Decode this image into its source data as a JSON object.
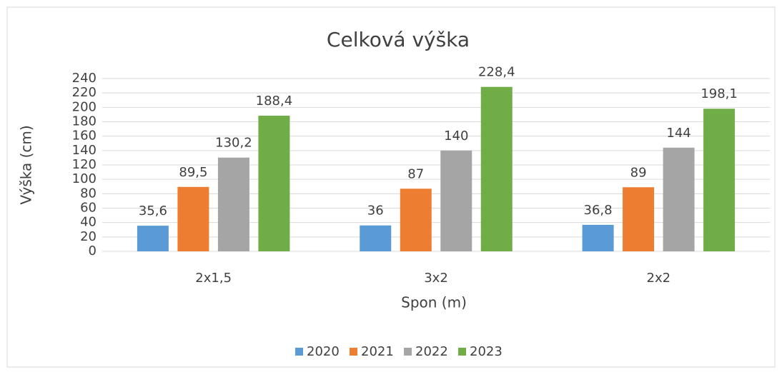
{
  "chart_data": {
    "type": "bar",
    "title": "Celková výška",
    "x_label": "Spon (m)",
    "y_label": "Výška (cm)",
    "categories": [
      "2x1,5",
      "3x2",
      "2x2"
    ],
    "series": [
      {
        "name": "2020",
        "color": "#5b9bd5",
        "values": [
          35.6,
          36,
          36.8
        ],
        "value_labels": [
          "35,6",
          "36",
          "36,8"
        ]
      },
      {
        "name": "2021",
        "color": "#ed7d31",
        "values": [
          89.5,
          87,
          89
        ],
        "value_labels": [
          "89,5",
          "87",
          "89"
        ]
      },
      {
        "name": "2022",
        "color": "#a5a5a5",
        "values": [
          130.2,
          140,
          144
        ],
        "value_labels": [
          "130,2",
          "140",
          "144"
        ]
      },
      {
        "name": "2023",
        "color": "#70ad47",
        "values": [
          188.4,
          228.4,
          198.1
        ],
        "value_labels": [
          "188,4",
          "228,4",
          "198,1"
        ]
      }
    ],
    "ylim": [
      0,
      240
    ],
    "yticks": [
      0,
      20,
      40,
      60,
      80,
      100,
      120,
      140,
      160,
      180,
      200,
      220,
      240
    ],
    "grid": true,
    "legend": "bottom"
  }
}
